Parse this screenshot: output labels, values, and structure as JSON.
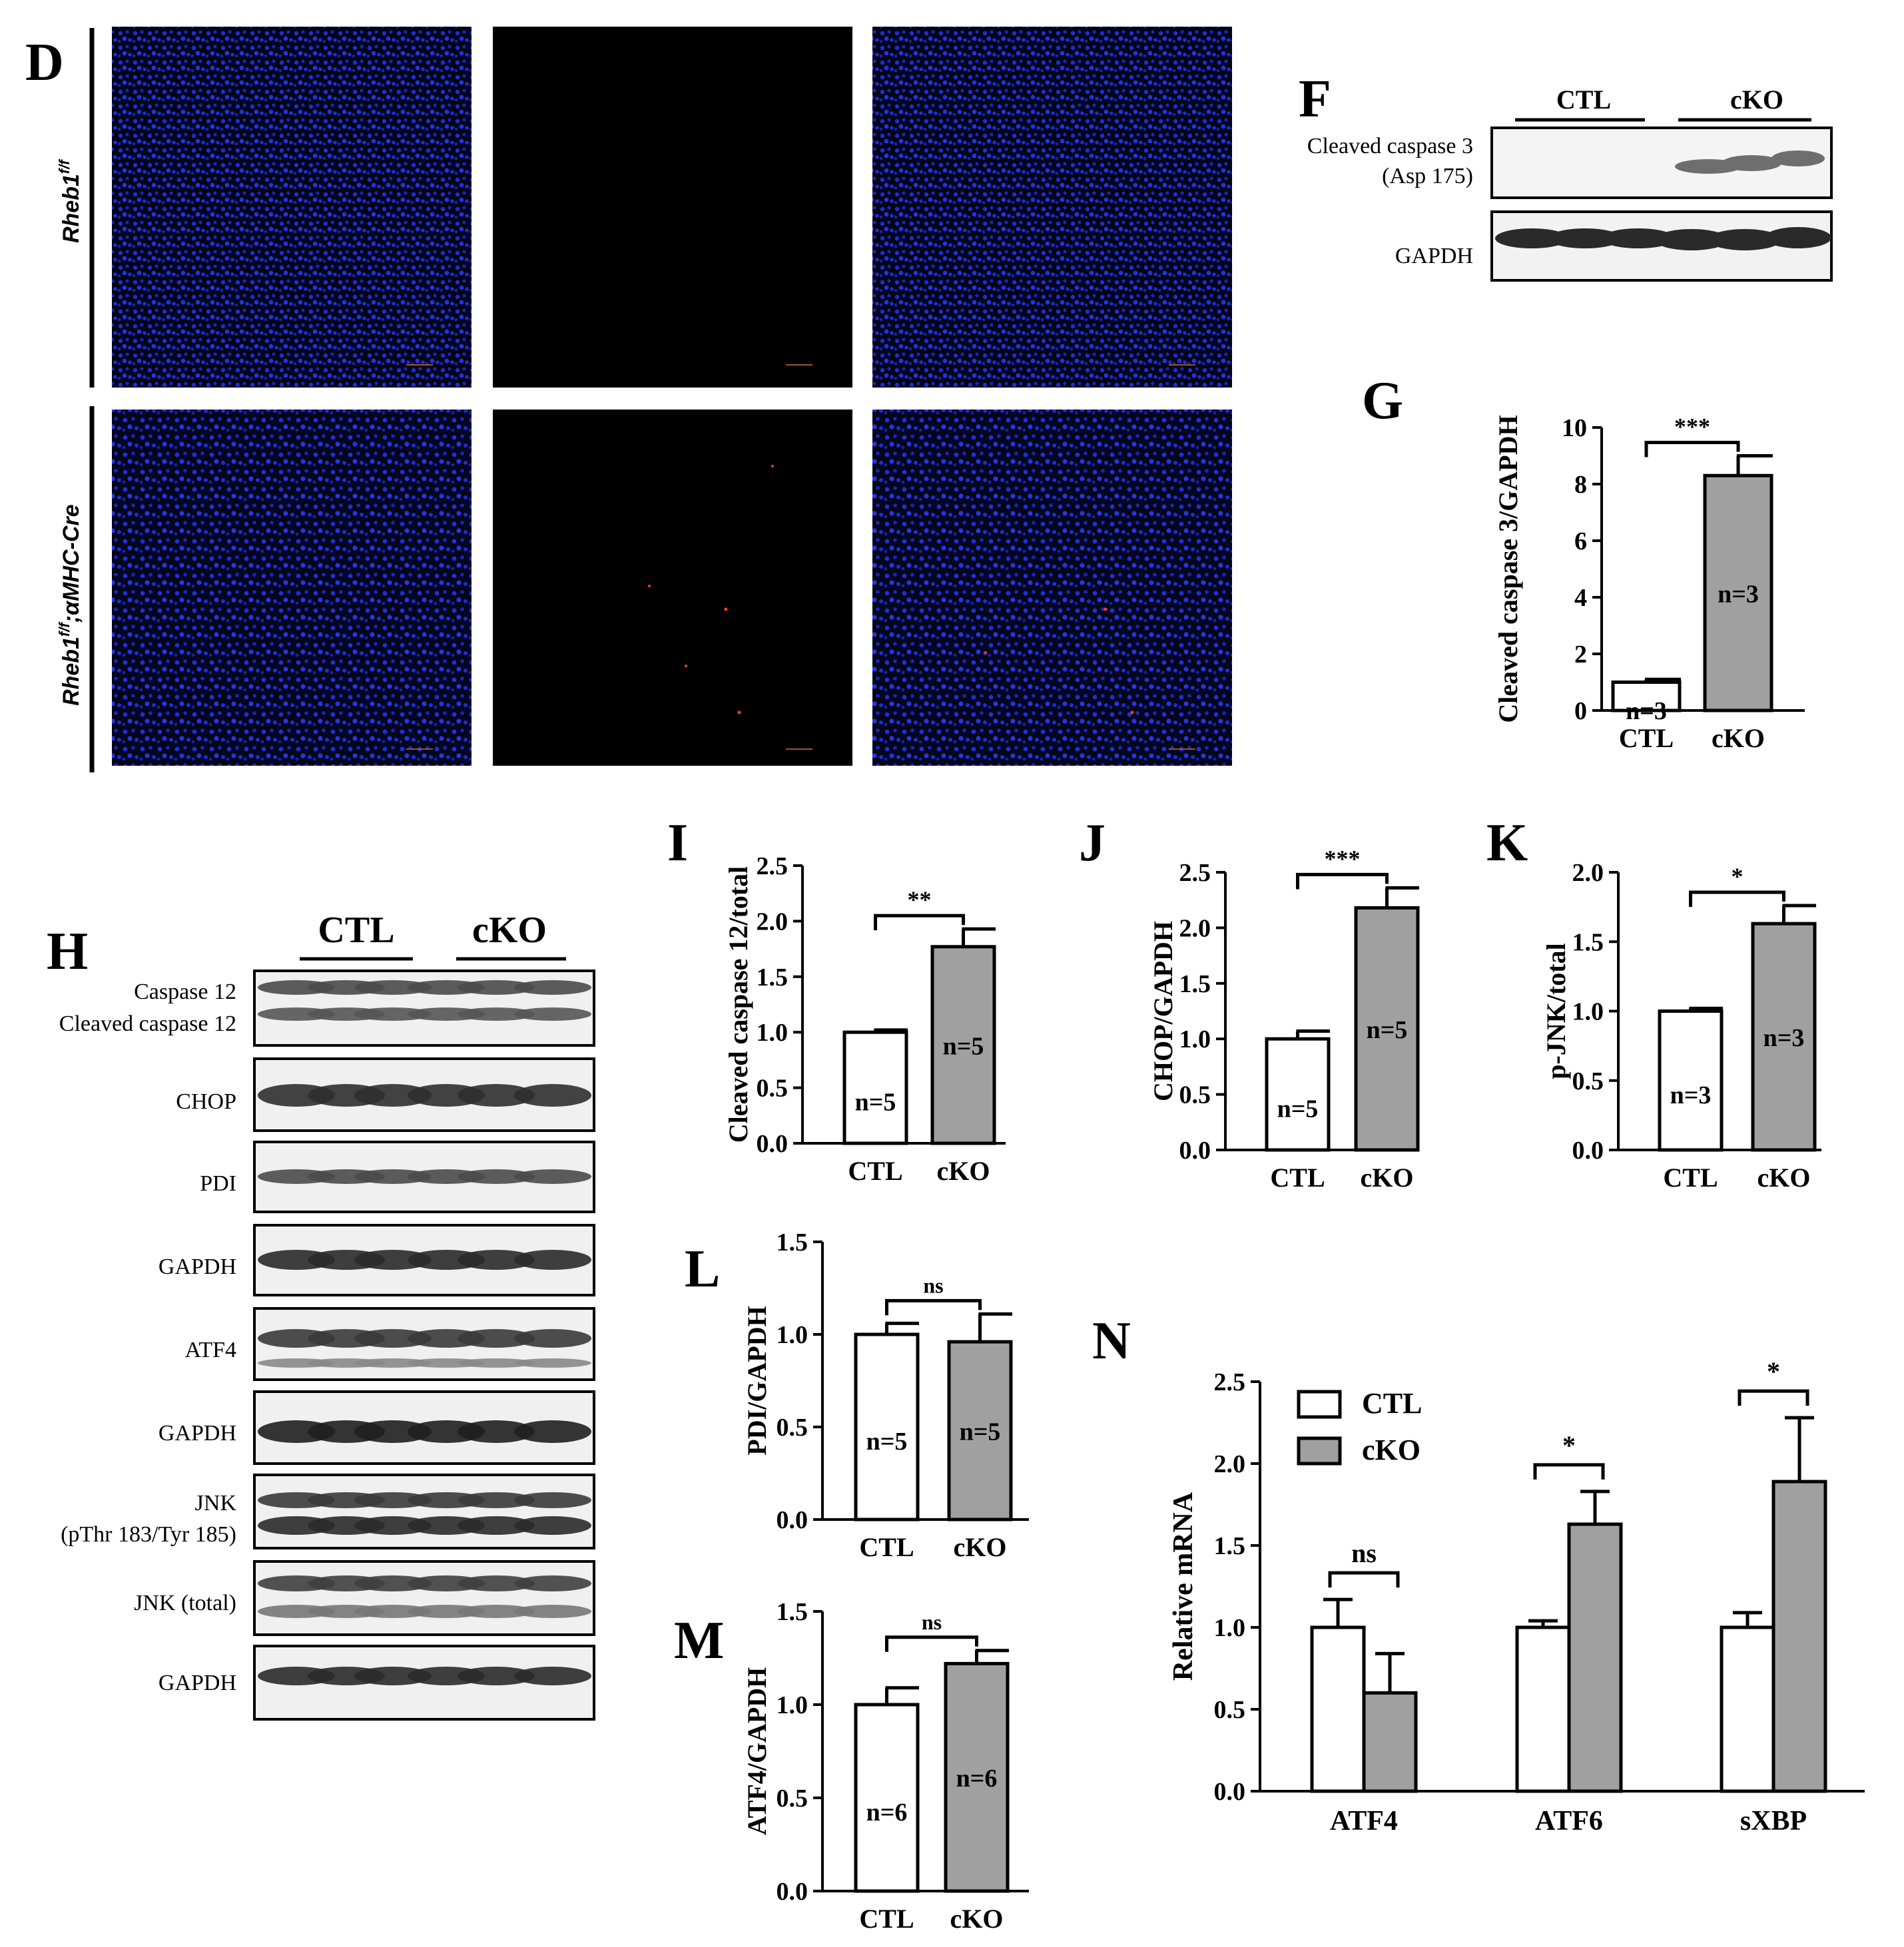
{
  "panels": {
    "D": "D",
    "F": "F",
    "G": "G",
    "H": "H",
    "I": "I",
    "J": "J",
    "K": "K",
    "L": "L",
    "M": "M",
    "N": "N"
  },
  "microscopy": {
    "row_labels": [
      "Rheb1",
      "f/f",
      "Rheb1",
      "f/f",
      ";αMHC-Cre"
    ],
    "nucleus_color": "#1e2fd0",
    "signal_color": "#ff3b30"
  },
  "blot_f": {
    "group_labels": [
      "CTL",
      "cKO"
    ],
    "row_labels": [
      "Cleaved caspase 3",
      "(Asp 175)",
      "GAPDH"
    ]
  },
  "blot_h": {
    "group_labels": [
      "CTL",
      "cKO"
    ],
    "row_labels": [
      "Caspase 12",
      "Cleaved caspase 12",
      "CHOP",
      "PDI",
      "GAPDH",
      "ATF4",
      "GAPDH",
      "JNK",
      "(pThr 183/Tyr 185)",
      "JNK (total)",
      "GAPDH"
    ]
  },
  "chart_data": [
    {
      "panel": "G",
      "type": "bar",
      "categories": [
        "CTL",
        "cKO"
      ],
      "values": [
        1.0,
        8.3
      ],
      "errors": [
        0.1,
        0.7
      ],
      "ylabel": "Cleaved caspase 3/GAPDH",
      "yticks": [
        "0",
        "2",
        "4",
        "6",
        "8",
        "10"
      ],
      "ylim": [
        0,
        10
      ],
      "bar_labels": [
        "n=3",
        "n=3"
      ],
      "significance": "***",
      "colors": [
        "#ffffff",
        "#a0a0a0"
      ]
    },
    {
      "panel": "I",
      "type": "bar",
      "categories": [
        "CTL",
        "cKO"
      ],
      "values": [
        1.0,
        1.77
      ],
      "errors": [
        0.02,
        0.16
      ],
      "ylabel": "Cleaved caspase 12/total",
      "yticks": [
        "0.0",
        "0.5",
        "1.0",
        "1.5",
        "2.0",
        "2.5"
      ],
      "ylim": [
        0,
        2.5
      ],
      "bar_labels": [
        "n=5",
        "n=5"
      ],
      "significance": "**",
      "colors": [
        "#ffffff",
        "#a0a0a0"
      ]
    },
    {
      "panel": "J",
      "type": "bar",
      "categories": [
        "CTL",
        "cKO"
      ],
      "values": [
        1.0,
        2.18
      ],
      "errors": [
        0.07,
        0.18
      ],
      "ylabel": "CHOP/GAPDH",
      "yticks": [
        "0.0",
        "0.5",
        "1.0",
        "1.5",
        "2.0",
        "2.5"
      ],
      "ylim": [
        0,
        2.5
      ],
      "bar_labels": [
        "n=5",
        "n=5"
      ],
      "significance": "***",
      "colors": [
        "#ffffff",
        "#a0a0a0"
      ]
    },
    {
      "panel": "K",
      "type": "bar",
      "categories": [
        "CTL",
        "cKO"
      ],
      "values": [
        1.0,
        1.63
      ],
      "errors": [
        0.02,
        0.13
      ],
      "ylabel": "p-JNK/total",
      "yticks": [
        "0.0",
        "0.5",
        "1.0",
        "1.5",
        "2.0"
      ],
      "ylim": [
        0,
        2.0
      ],
      "bar_labels": [
        "n=3",
        "n=3"
      ],
      "significance": "*",
      "colors": [
        "#ffffff",
        "#a0a0a0"
      ]
    },
    {
      "panel": "L",
      "type": "bar",
      "categories": [
        "CTL",
        "cKO"
      ],
      "values": [
        1.0,
        0.96
      ],
      "errors": [
        0.06,
        0.15
      ],
      "ylabel": "PDI/GAPDH",
      "yticks": [
        "0.0",
        "0.5",
        "1.0",
        "1.5"
      ],
      "ylim": [
        0,
        1.5
      ],
      "bar_labels": [
        "n=5",
        "n=5"
      ],
      "significance": "ns",
      "colors": [
        "#ffffff",
        "#a0a0a0"
      ]
    },
    {
      "panel": "M",
      "type": "bar",
      "categories": [
        "CTL",
        "cKO"
      ],
      "values": [
        1.0,
        1.22
      ],
      "errors": [
        0.09,
        0.07
      ],
      "ylabel": "ATF4/GAPDH",
      "yticks": [
        "0.0",
        "0.5",
        "1.0",
        "1.5"
      ],
      "ylim": [
        0,
        1.5
      ],
      "bar_labels": [
        "n=6",
        "n=6"
      ],
      "significance": "ns",
      "colors": [
        "#ffffff",
        "#a0a0a0"
      ]
    },
    {
      "panel": "N",
      "type": "bar",
      "categories": [
        "ATF4",
        "ATF6",
        "sXBP"
      ],
      "series": [
        {
          "name": "CTL",
          "values": [
            1.0,
            1.0,
            1.0
          ],
          "errors": [
            0.17,
            0.04,
            0.09
          ],
          "color": "#ffffff"
        },
        {
          "name": "cKO",
          "values": [
            0.6,
            1.63,
            1.89
          ],
          "errors": [
            0.24,
            0.2,
            0.39
          ],
          "color": "#a0a0a0"
        }
      ],
      "ylabel": "Relative mRNA",
      "yticks": [
        "0.0",
        "0.5",
        "1.0",
        "1.5",
        "2.0",
        "2.5"
      ],
      "ylim": [
        0,
        2.5
      ],
      "significance": [
        "ns",
        "*",
        "*"
      ],
      "legend": "top-left"
    }
  ]
}
